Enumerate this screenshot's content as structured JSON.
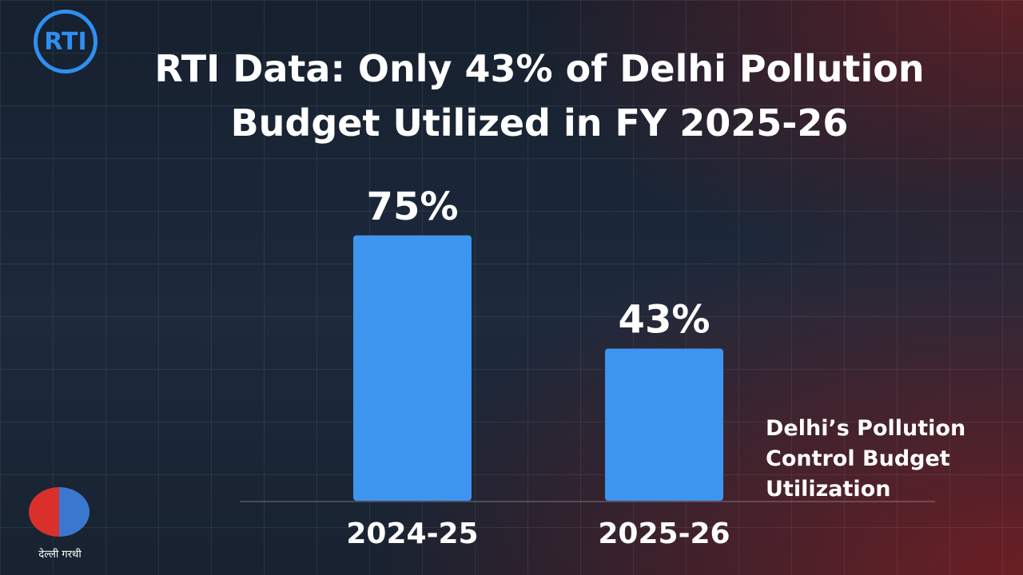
{
  "chart_data": {
    "type": "bar",
    "title": "RTI Data: Only 43% of Delhi Pollution Budget Utilized in FY 2025-26",
    "logo": "RTI",
    "caption": "Delhi’s Pollution Control Budget Utilization",
    "emblem_text": "देल्ली गरथी",
    "categories": [
      "2024-25",
      "2025-26"
    ],
    "values": [
      75,
      43
    ],
    "value_labels": [
      "75%",
      "43%"
    ],
    "color": "#3d95f0"
  }
}
